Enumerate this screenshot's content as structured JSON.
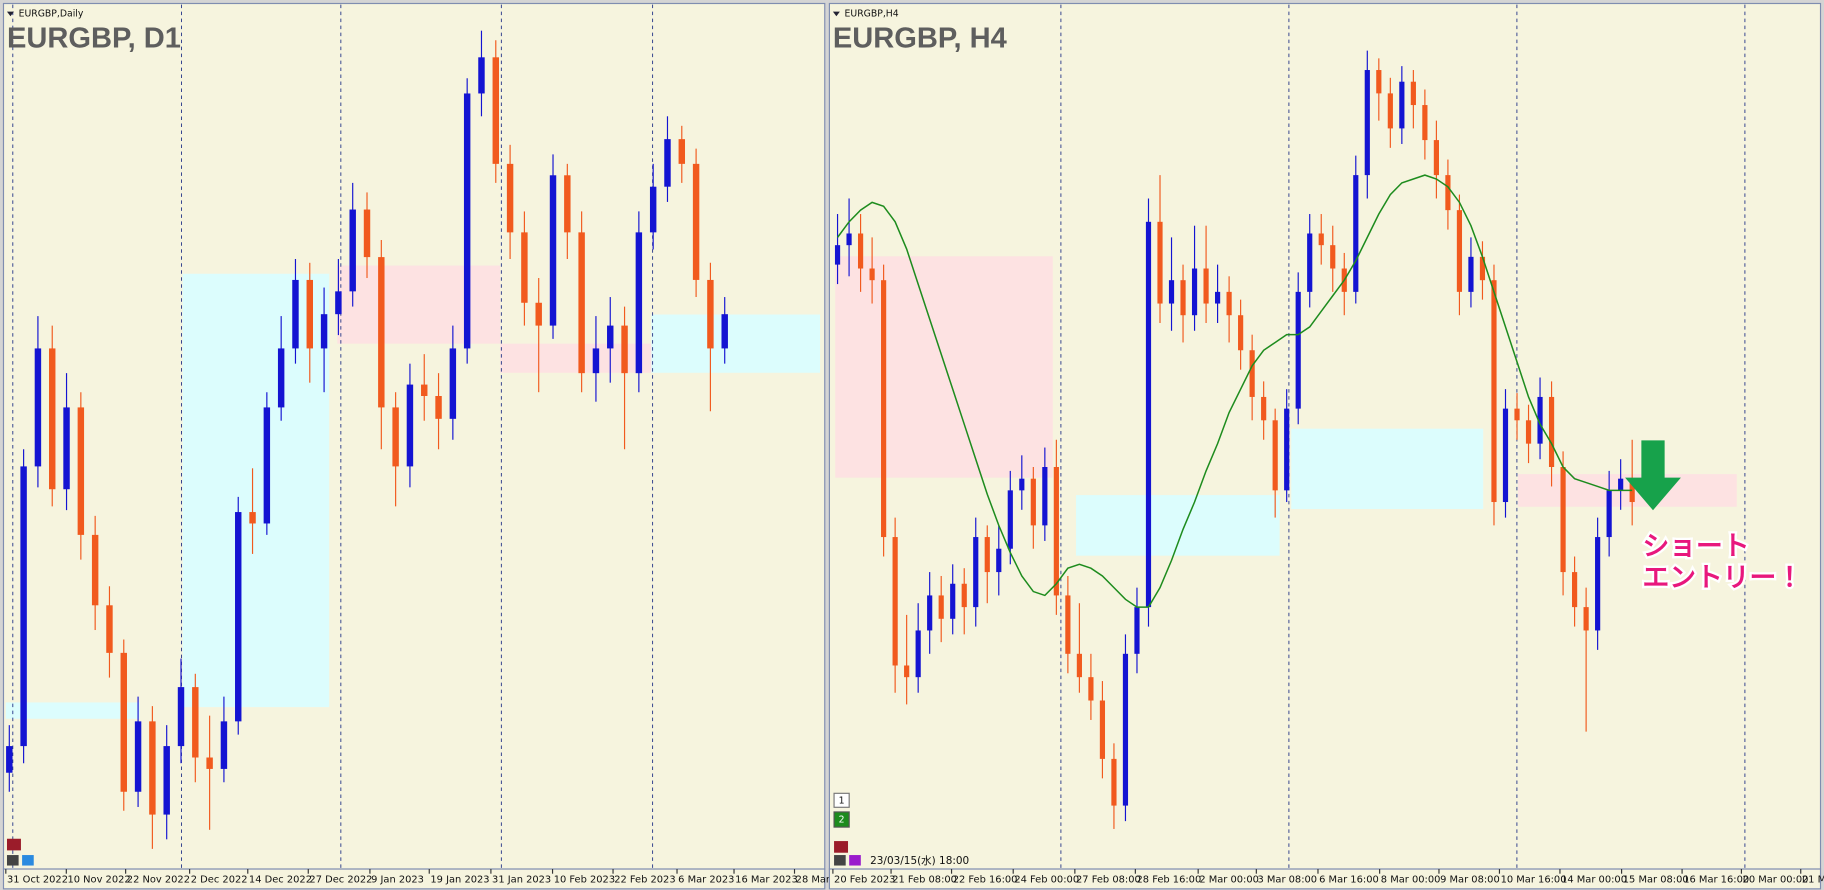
{
  "chart_data": [
    {
      "type": "candlestick",
      "window_title": "EURGBP,Daily",
      "title": "EURGBP, D1",
      "x_axis_labels": [
        "31 Oct 2022",
        "10 Nov 2022",
        "22 Nov 2022",
        "2 Dec 2022",
        "14 Dec 2022",
        "27 Dec 2022",
        "9 Jan 2023",
        "19 Jan 2023",
        "31 Jan 2023",
        "10 Feb 2023",
        "22 Feb 2023",
        "6 Mar 2023",
        "16 Mar 2023",
        "28 Mar"
      ],
      "ylim": [
        0.855,
        0.9
      ],
      "up_color": "#1414d2",
      "down_color": "#f15a1e",
      "ohlc": [
        [
          0.86,
          0.8625,
          0.859,
          0.8614
        ],
        [
          0.8614,
          0.877,
          0.8605,
          0.8761
        ],
        [
          0.8761,
          0.884,
          0.875,
          0.8823
        ],
        [
          0.8823,
          0.8835,
          0.874,
          0.8749
        ],
        [
          0.8749,
          0.881,
          0.8738,
          0.8792
        ],
        [
          0.8792,
          0.88,
          0.8712,
          0.8725
        ],
        [
          0.8725,
          0.8735,
          0.8675,
          0.8688
        ],
        [
          0.8688,
          0.8698,
          0.865,
          0.8663
        ],
        [
          0.8663,
          0.867,
          0.858,
          0.859
        ],
        [
          0.859,
          0.864,
          0.8582,
          0.8627
        ],
        [
          0.8627,
          0.8635,
          0.856,
          0.8578
        ],
        [
          0.8578,
          0.8625,
          0.8565,
          0.8614
        ],
        [
          0.8614,
          0.866,
          0.8605,
          0.8645
        ],
        [
          0.8645,
          0.8652,
          0.8595,
          0.8608
        ],
        [
          0.8608,
          0.863,
          0.857,
          0.8602
        ],
        [
          0.8602,
          0.864,
          0.8595,
          0.8627
        ],
        [
          0.8627,
          0.8745,
          0.862,
          0.8737
        ],
        [
          0.8737,
          0.876,
          0.8715,
          0.8731
        ],
        [
          0.8731,
          0.88,
          0.8725,
          0.8792
        ],
        [
          0.8792,
          0.884,
          0.8785,
          0.8823
        ],
        [
          0.8823,
          0.887,
          0.8815,
          0.8859
        ],
        [
          0.8859,
          0.8868,
          0.8805,
          0.8823
        ],
        [
          0.8823,
          0.8855,
          0.88,
          0.8841
        ],
        [
          0.8841,
          0.887,
          0.883,
          0.8853
        ],
        [
          0.8853,
          0.891,
          0.8845,
          0.8896
        ],
        [
          0.8896,
          0.8905,
          0.886,
          0.8871
        ],
        [
          0.8871,
          0.888,
          0.877,
          0.8792
        ],
        [
          0.8792,
          0.88,
          0.874,
          0.8761
        ],
        [
          0.8761,
          0.8815,
          0.875,
          0.8804
        ],
        [
          0.8804,
          0.882,
          0.8785,
          0.8798
        ],
        [
          0.8798,
          0.881,
          0.877,
          0.8786
        ],
        [
          0.8786,
          0.8835,
          0.8775,
          0.8823
        ],
        [
          0.8823,
          0.8965,
          0.8815,
          0.8957
        ],
        [
          0.8957,
          0.899,
          0.8945,
          0.8976
        ],
        [
          0.8976,
          0.8985,
          0.891,
          0.892
        ],
        [
          0.892,
          0.893,
          0.887,
          0.8884
        ],
        [
          0.8884,
          0.8895,
          0.8835,
          0.8847
        ],
        [
          0.8847,
          0.886,
          0.88,
          0.8835
        ],
        [
          0.8835,
          0.8925,
          0.8828,
          0.8914
        ],
        [
          0.8914,
          0.892,
          0.887,
          0.8884
        ],
        [
          0.8884,
          0.8895,
          0.88,
          0.881
        ],
        [
          0.881,
          0.884,
          0.8795,
          0.8823
        ],
        [
          0.8823,
          0.885,
          0.8805,
          0.8835
        ],
        [
          0.8835,
          0.8845,
          0.877,
          0.881
        ],
        [
          0.881,
          0.8895,
          0.88,
          0.8884
        ],
        [
          0.8884,
          0.892,
          0.8875,
          0.8908
        ],
        [
          0.8908,
          0.8945,
          0.89,
          0.8933
        ],
        [
          0.8933,
          0.894,
          0.891,
          0.892
        ],
        [
          0.892,
          0.8928,
          0.885,
          0.8859
        ],
        [
          0.8859,
          0.8868,
          0.879,
          0.8823
        ],
        [
          0.8823,
          0.885,
          0.8815,
          0.8841
        ]
      ]
    },
    {
      "type": "candlestick",
      "window_title": "EURGBP,H4",
      "title": "EURGBP, H4",
      "x_axis_labels": [
        "20 Feb 2023",
        "21 Feb 08:00",
        "22 Feb 16:00",
        "24 Feb 00:00",
        "27 Feb 08:00",
        "28 Feb 16:00",
        "2 Mar 00:00",
        "3 Mar 08:00",
        "6 Mar 16:00",
        "8 Mar 00:00",
        "9 Mar 08:00",
        "10 Mar 16:00",
        "14 Mar 00:00",
        "15 Mar 08:00",
        "16 Mar 16:00",
        "20 Mar 00:00",
        "21 M"
      ],
      "ylim": [
        0.868,
        0.89
      ],
      "up_color": "#1414d2",
      "down_color": "#f15a1e",
      "ohlc": [
        [
          0.8835,
          0.8848,
          0.883,
          0.884
        ],
        [
          0.884,
          0.8852,
          0.8832,
          0.8843
        ],
        [
          0.8843,
          0.8848,
          0.8828,
          0.8834
        ],
        [
          0.8834,
          0.8842,
          0.8825,
          0.8831
        ],
        [
          0.8831,
          0.8835,
          0.876,
          0.8765
        ],
        [
          0.8765,
          0.877,
          0.8725,
          0.8732
        ],
        [
          0.8732,
          0.8745,
          0.8722,
          0.8729
        ],
        [
          0.8729,
          0.8748,
          0.8725,
          0.8741
        ],
        [
          0.8741,
          0.8756,
          0.8735,
          0.875
        ],
        [
          0.875,
          0.8755,
          0.8738,
          0.8744
        ],
        [
          0.8744,
          0.8758,
          0.874,
          0.8753
        ],
        [
          0.8753,
          0.8757,
          0.874,
          0.8747
        ],
        [
          0.8747,
          0.877,
          0.8742,
          0.8765
        ],
        [
          0.8765,
          0.8768,
          0.8748,
          0.8756
        ],
        [
          0.8756,
          0.8768,
          0.875,
          0.8762
        ],
        [
          0.8762,
          0.8782,
          0.8758,
          0.8777
        ],
        [
          0.8777,
          0.8786,
          0.8772,
          0.878
        ],
        [
          0.878,
          0.8783,
          0.8762,
          0.8768
        ],
        [
          0.8768,
          0.8788,
          0.8764,
          0.8783
        ],
        [
          0.8783,
          0.879,
          0.8745,
          0.875
        ],
        [
          0.875,
          0.8755,
          0.873,
          0.8735
        ],
        [
          0.8735,
          0.8748,
          0.8725,
          0.8729
        ],
        [
          0.8729,
          0.8735,
          0.8718,
          0.8723
        ],
        [
          0.8723,
          0.8728,
          0.8703,
          0.8708
        ],
        [
          0.8708,
          0.8712,
          0.869,
          0.8696
        ],
        [
          0.8696,
          0.874,
          0.8692,
          0.8735
        ],
        [
          0.8735,
          0.8752,
          0.873,
          0.8747
        ],
        [
          0.8747,
          0.8852,
          0.8742,
          0.8846
        ],
        [
          0.8846,
          0.8858,
          0.882,
          0.8825
        ],
        [
          0.8825,
          0.8842,
          0.8818,
          0.8831
        ],
        [
          0.8831,
          0.8835,
          0.8815,
          0.8822
        ],
        [
          0.8822,
          0.8845,
          0.8818,
          0.8834
        ],
        [
          0.8834,
          0.8845,
          0.882,
          0.8825
        ],
        [
          0.8825,
          0.8835,
          0.882,
          0.8828
        ],
        [
          0.8828,
          0.8832,
          0.8815,
          0.8822
        ],
        [
          0.8822,
          0.8826,
          0.8808,
          0.8813
        ],
        [
          0.8813,
          0.8817,
          0.8795,
          0.8801
        ],
        [
          0.8801,
          0.8805,
          0.879,
          0.8795
        ],
        [
          0.8795,
          0.8798,
          0.877,
          0.8777
        ],
        [
          0.8777,
          0.8803,
          0.8774,
          0.8798
        ],
        [
          0.8798,
          0.8833,
          0.8794,
          0.8828
        ],
        [
          0.8828,
          0.8848,
          0.8824,
          0.8843
        ],
        [
          0.8843,
          0.8848,
          0.8835,
          0.884
        ],
        [
          0.884,
          0.8845,
          0.8828,
          0.8834
        ],
        [
          0.8834,
          0.8838,
          0.8822,
          0.8828
        ],
        [
          0.8828,
          0.8863,
          0.8825,
          0.8858
        ],
        [
          0.8858,
          0.889,
          0.8852,
          0.8885
        ],
        [
          0.8885,
          0.8888,
          0.8872,
          0.8879
        ],
        [
          0.8879,
          0.8883,
          0.8865,
          0.887
        ],
        [
          0.887,
          0.8886,
          0.8866,
          0.8882
        ],
        [
          0.8882,
          0.8885,
          0.887,
          0.8876
        ],
        [
          0.8876,
          0.888,
          0.8862,
          0.8867
        ],
        [
          0.8867,
          0.8872,
          0.8852,
          0.8858
        ],
        [
          0.8858,
          0.8862,
          0.8844,
          0.8849
        ],
        [
          0.8849,
          0.8853,
          0.8822,
          0.8828
        ],
        [
          0.8828,
          0.8842,
          0.8824,
          0.8837
        ],
        [
          0.8837,
          0.8841,
          0.8826,
          0.8831
        ],
        [
          0.8831,
          0.8835,
          0.8768,
          0.8774
        ],
        [
          0.8774,
          0.8803,
          0.877,
          0.8798
        ],
        [
          0.8798,
          0.8802,
          0.879,
          0.8795
        ],
        [
          0.8795,
          0.8799,
          0.8784,
          0.8789
        ],
        [
          0.8789,
          0.8806,
          0.8785,
          0.8801
        ],
        [
          0.8801,
          0.8805,
          0.8778,
          0.8783
        ],
        [
          0.8783,
          0.8787,
          0.875,
          0.8756
        ],
        [
          0.8756,
          0.876,
          0.8742,
          0.8747
        ],
        [
          0.8747,
          0.8752,
          0.8715,
          0.8741
        ],
        [
          0.8741,
          0.877,
          0.8736,
          0.8765
        ],
        [
          0.8765,
          0.8782,
          0.876,
          0.8777
        ],
        [
          0.8777,
          0.8785,
          0.8772,
          0.878
        ],
        [
          0.878,
          0.879,
          0.8768,
          0.8774
        ]
      ],
      "ma": {
        "color": "#1e8c1e",
        "values": [
          0.8842,
          0.8846,
          0.8849,
          0.8851,
          0.885,
          0.8846,
          0.8839,
          0.883,
          0.8821,
          0.8812,
          0.8803,
          0.8794,
          0.8785,
          0.8776,
          0.8768,
          0.8761,
          0.8755,
          0.8751,
          0.875,
          0.8753,
          0.8757,
          0.8758,
          0.8757,
          0.8755,
          0.8752,
          0.8749,
          0.8747,
          0.8747,
          0.8752,
          0.8759,
          0.8767,
          0.8774,
          0.8782,
          0.8789,
          0.8797,
          0.8803,
          0.8809,
          0.8813,
          0.8815,
          0.8817,
          0.8817,
          0.8819,
          0.8823,
          0.8827,
          0.8831,
          0.8836,
          0.8842,
          0.8848,
          0.8853,
          0.8856,
          0.8857,
          0.8858,
          0.8857,
          0.8855,
          0.8851,
          0.8845,
          0.8837,
          0.8828,
          0.8819,
          0.881,
          0.8801,
          0.8794,
          0.8789,
          0.8783,
          0.878,
          0.8779,
          0.8778,
          0.8777,
          0.8777,
          0.8777
        ]
      }
    }
  ],
  "annotation": {
    "lines": [
      "ショート",
      "エントリー！"
    ]
  },
  "status": {
    "time": "23/03/15(水) 18:00",
    "buttons": [
      "1",
      "2"
    ]
  }
}
